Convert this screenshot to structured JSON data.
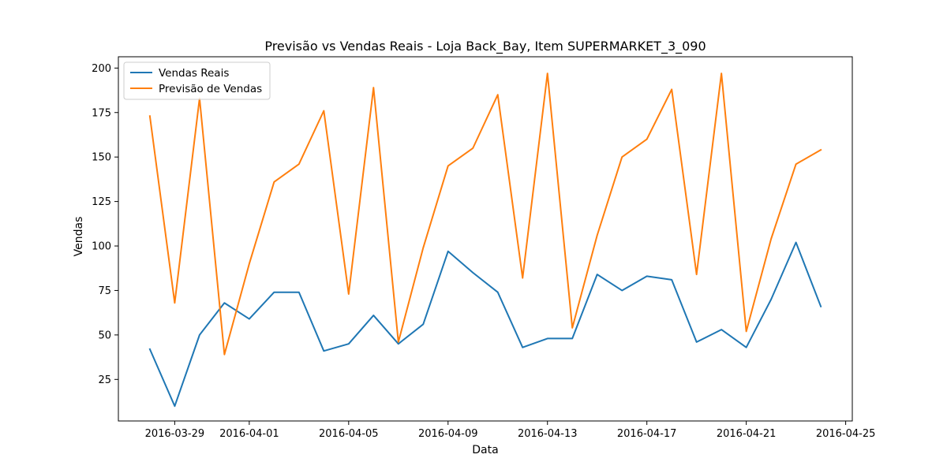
{
  "chart_data": {
    "type": "line",
    "title": "Previsão vs Vendas Reais - Loja Back_Bay, Item SUPERMARKET_3_090",
    "xlabel": "Data",
    "ylabel": "Vendas",
    "x": [
      "2016-03-28",
      "2016-03-29",
      "2016-03-30",
      "2016-03-31",
      "2016-04-01",
      "2016-04-02",
      "2016-04-03",
      "2016-04-04",
      "2016-04-05",
      "2016-04-06",
      "2016-04-07",
      "2016-04-08",
      "2016-04-09",
      "2016-04-10",
      "2016-04-11",
      "2016-04-12",
      "2016-04-13",
      "2016-04-14",
      "2016-04-15",
      "2016-04-16",
      "2016-04-17",
      "2016-04-18",
      "2016-04-19",
      "2016-04-20",
      "2016-04-21",
      "2016-04-22",
      "2016-04-23",
      "2016-04-24"
    ],
    "series": [
      {
        "name": "Vendas Reais",
        "color": "#1f77b4",
        "values": [
          42,
          10,
          50,
          68,
          59,
          74,
          74,
          41,
          45,
          61,
          45,
          56,
          97,
          85,
          74,
          43,
          48,
          48,
          84,
          75,
          83,
          81,
          46,
          53,
          43,
          70,
          102,
          66
        ]
      },
      {
        "name": "Previsão de Vendas",
        "color": "#ff7f0e",
        "values": [
          173,
          68,
          183,
          39,
          90,
          136,
          146,
          176,
          73,
          189,
          46,
          99,
          145,
          155,
          185,
          82,
          197,
          54,
          106,
          150,
          160,
          188,
          84,
          197,
          52,
          104,
          146,
          154
        ]
      }
    ],
    "xticks": [
      {
        "date": "2016-03-29",
        "label": "2016-03-29"
      },
      {
        "date": "2016-04-01",
        "label": "2016-04-01"
      },
      {
        "date": "2016-04-05",
        "label": "2016-04-05"
      },
      {
        "date": "2016-04-09",
        "label": "2016-04-09"
      },
      {
        "date": "2016-04-13",
        "label": "2016-04-13"
      },
      {
        "date": "2016-04-17",
        "label": "2016-04-17"
      },
      {
        "date": "2016-04-21",
        "label": "2016-04-21"
      },
      {
        "date": "2016-04-25",
        "label": "2016-04-25"
      }
    ],
    "xlim": [
      "2016-03-26 17:36",
      "2016-04-25 06:24"
    ],
    "yticks": [
      25,
      50,
      75,
      100,
      125,
      150,
      175,
      200
    ],
    "ylim": [
      1.65,
      206.35
    ],
    "grid": false,
    "legend_position": "upper left"
  }
}
